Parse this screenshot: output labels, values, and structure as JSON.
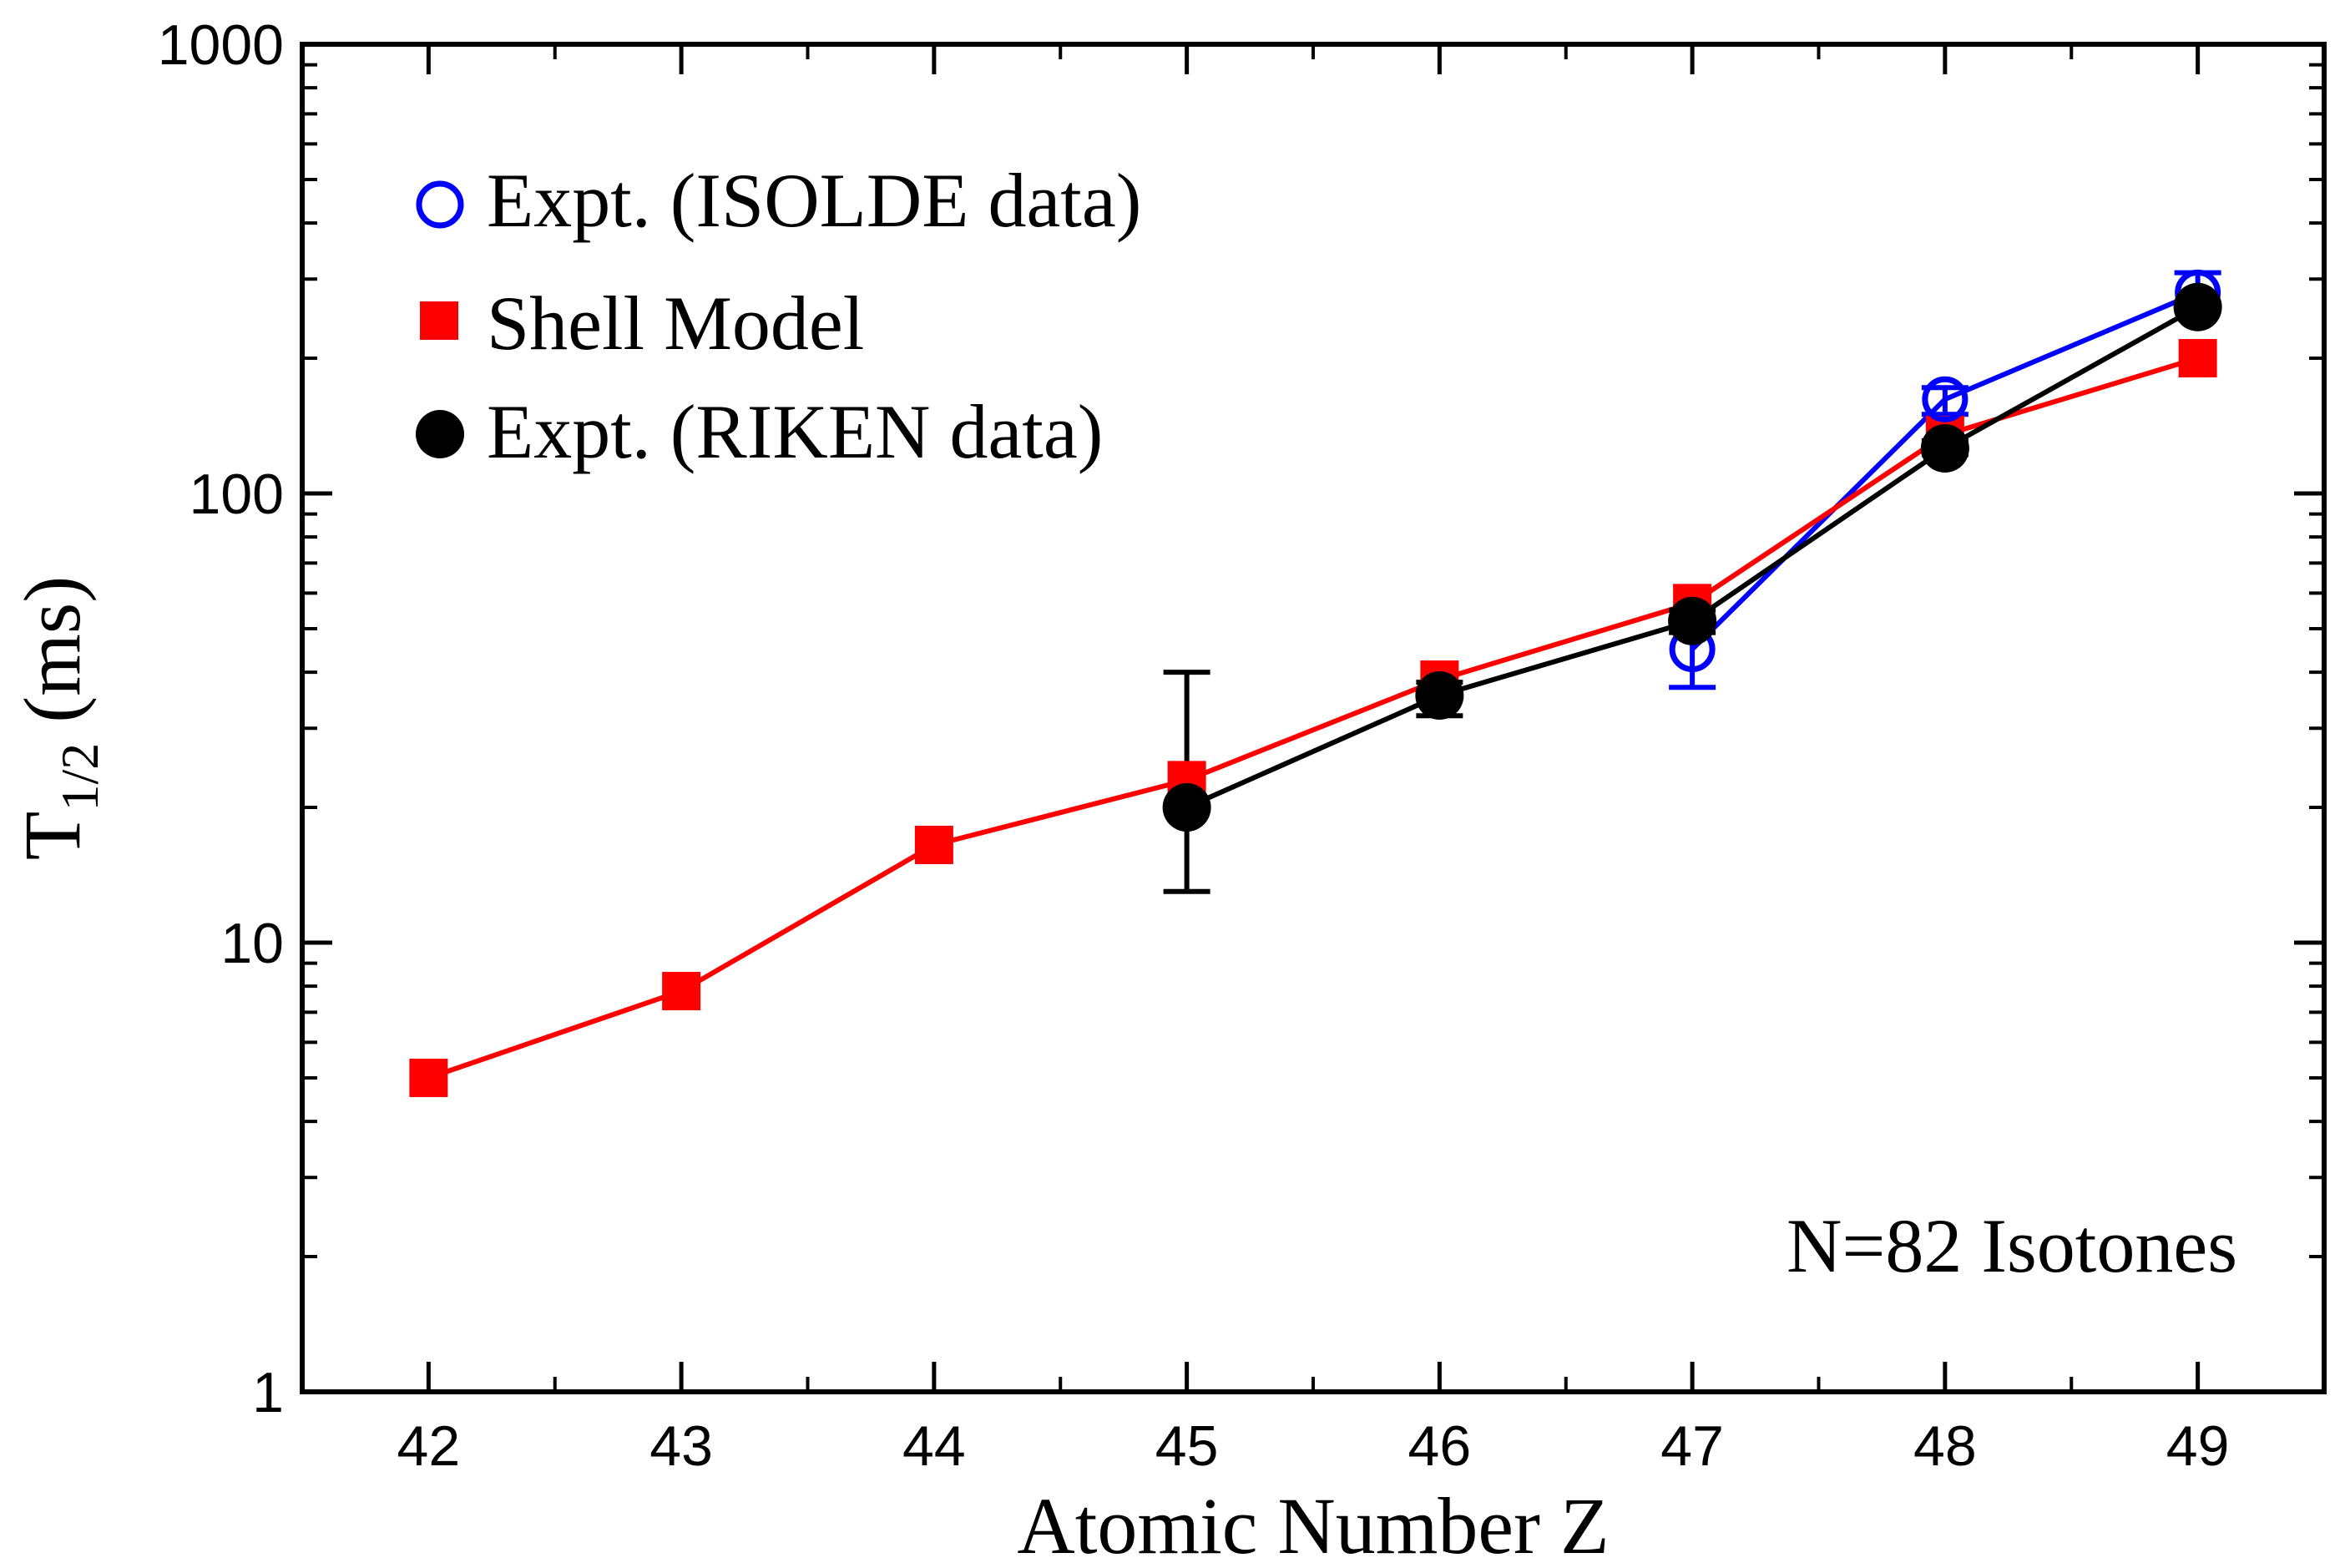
{
  "chart_data": {
    "type": "line",
    "title": "",
    "xlabel": "Atomic Number Z",
    "ylabel": "T",
    "ylabel_sub": "1/2",
    "ylabel_unit": "(ms)",
    "yscale": "log",
    "xlim": [
      41.5,
      49.5
    ],
    "ylim": [
      1,
      1000
    ],
    "x_ticks": [
      42,
      43,
      44,
      45,
      46,
      47,
      48,
      49
    ],
    "x_tick_labels": [
      "42",
      "43",
      "44",
      "45",
      "46",
      "47",
      "48",
      "49"
    ],
    "y_ticks": [
      1,
      10,
      100,
      1000
    ],
    "y_tick_labels": [
      "1",
      "10",
      "100",
      "1000"
    ],
    "annotation": "N=82 Isotones",
    "legend_position": "top-left",
    "series": [
      {
        "name": "Expt. (ISOLDE data)",
        "color": "#0000ff",
        "marker": "open-circle",
        "x": [
          47,
          48,
          49
        ],
        "values": [
          45,
          162,
          280
        ],
        "err_low": [
          37,
          150,
          260
        ],
        "err_high": [
          53,
          172,
          310
        ]
      },
      {
        "name": "Shell Model",
        "color": "#ff0000",
        "marker": "filled-square",
        "x": [
          42,
          43,
          44,
          45,
          46,
          47,
          48,
          49
        ],
        "values": [
          5.0,
          7.8,
          16.5,
          23,
          38.5,
          57,
          135,
          200
        ]
      },
      {
        "name": "Expt. (RIKEN data)",
        "color": "#000000",
        "marker": "filled-circle",
        "x": [
          45,
          46,
          47,
          48,
          49
        ],
        "values": [
          20,
          35.5,
          52,
          126,
          260
        ],
        "err_low": [
          13,
          32,
          49,
          122,
          255
        ],
        "err_high": [
          40,
          38,
          55,
          131,
          265
        ]
      }
    ]
  }
}
